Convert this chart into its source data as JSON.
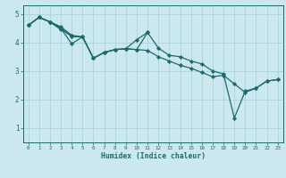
{
  "title": "",
  "xlabel": "Humidex (Indice chaleur)",
  "bg_color": "#cce8ef",
  "grid_color": "#aad4dc",
  "line_color": "#1a6b6b",
  "xlim": [
    -0.5,
    23.5
  ],
  "ylim": [
    0.5,
    5.3
  ],
  "yticks": [
    1,
    2,
    3,
    4,
    5
  ],
  "xticks": [
    0,
    1,
    2,
    3,
    4,
    5,
    6,
    7,
    8,
    9,
    10,
    11,
    12,
    13,
    14,
    15,
    16,
    17,
    18,
    19,
    20,
    21,
    22,
    23
  ],
  "lines": [
    {
      "x": [
        0,
        1,
        2,
        3,
        4,
        5,
        6,
        7,
        8,
        9,
        10,
        11,
        12,
        13,
        14,
        15,
        16,
        17,
        18,
        19,
        20,
        21,
        22,
        23
      ],
      "y": [
        4.6,
        4.88,
        4.72,
        4.5,
        3.95,
        4.2,
        3.45,
        3.65,
        3.75,
        3.78,
        3.75,
        3.72,
        3.5,
        3.35,
        3.2,
        3.1,
        2.95,
        2.8,
        2.85,
        2.55,
        2.25,
        2.4,
        2.65,
        2.7
      ]
    },
    {
      "x": [
        0,
        1,
        2,
        3,
        4,
        5,
        6,
        7,
        8,
        9,
        10,
        11,
        12,
        13,
        14,
        15,
        16,
        17,
        18,
        19,
        20,
        21,
        22,
        23
      ],
      "y": [
        4.6,
        4.88,
        4.72,
        4.5,
        4.2,
        4.2,
        3.45,
        3.65,
        3.75,
        3.78,
        4.1,
        4.35,
        3.8,
        3.55,
        3.5,
        3.35,
        3.25,
        3.0,
        2.9,
        1.35,
        2.3,
        2.4,
        2.65,
        2.7
      ]
    },
    {
      "x": [
        0,
        1,
        2,
        3,
        4,
        5,
        6,
        7,
        8,
        9,
        10,
        11
      ],
      "y": [
        4.6,
        4.88,
        4.72,
        4.45,
        4.25,
        4.2,
        3.45,
        3.65,
        3.75,
        3.78,
        3.75,
        4.35
      ]
    },
    {
      "x": [
        0,
        1,
        2,
        3,
        4
      ],
      "y": [
        4.6,
        4.88,
        4.72,
        4.55,
        4.25
      ]
    }
  ]
}
